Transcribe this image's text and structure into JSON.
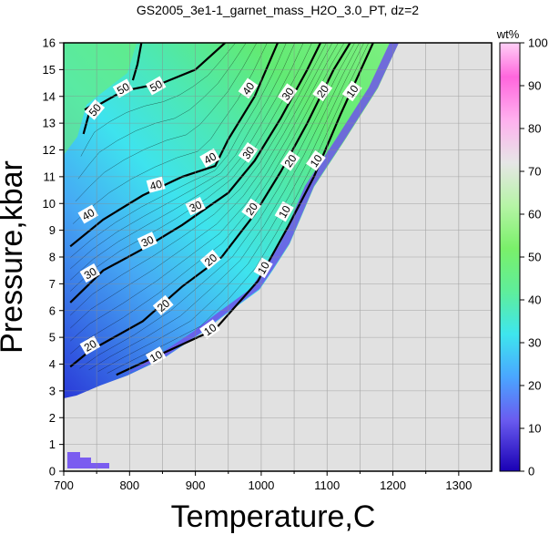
{
  "chart_data": {
    "type": "heatmap",
    "title": "GS2005_3e1-1_garnet_mass_H2O_3.0_PT, dz=2",
    "xlabel": "Temperature,C",
    "ylabel": "Pressure,kbar",
    "xlim": [
      700,
      1350
    ],
    "ylim": [
      0,
      16
    ],
    "xticks": [
      "700",
      "800",
      "900",
      "1000",
      "1100",
      "1200",
      "1300"
    ],
    "yticks": [
      "0",
      "1",
      "2",
      "3",
      "4",
      "5",
      "6",
      "7",
      "8",
      "9",
      "10",
      "11",
      "12",
      "13",
      "14",
      "15",
      "16"
    ],
    "grid": true,
    "colorbar": {
      "label": "wt%",
      "range": [
        0,
        100
      ],
      "ticks": [
        "0",
        "10",
        "20",
        "30",
        "40",
        "50",
        "60",
        "70",
        "80",
        "90",
        "100"
      ],
      "colors": [
        "#1a00b4",
        "#6a5cf0",
        "#4aa6ff",
        "#3ee6ee",
        "#5fee9a",
        "#7af06a",
        "#b6f4a6",
        "#e6e6e6",
        "#ffb0ee",
        "#ff66dd",
        "#ffd0f6"
      ]
    },
    "background_color": "#e1e1e1",
    "contour_step": 2,
    "labelled_contours": [
      {
        "level": 10,
        "points": [
          [
            780,
            3.6
          ],
          [
            850,
            4.4
          ],
          [
            930,
            5.3
          ],
          [
            995,
            7.1
          ],
          [
            1040,
            9.1
          ],
          [
            1080,
            11.0
          ],
          [
            1120,
            13.3
          ],
          [
            1170,
            16.0
          ]
        ]
      },
      {
        "level": 20,
        "points": [
          [
            710,
            3.9
          ],
          [
            740,
            4.5
          ],
          [
            820,
            5.6
          ],
          [
            880,
            6.9
          ],
          [
            940,
            8.0
          ],
          [
            990,
            9.6
          ],
          [
            1030,
            11.2
          ],
          [
            1070,
            13.0
          ],
          [
            1110,
            15.0
          ],
          [
            1135,
            16.0
          ]
        ]
      },
      {
        "level": 30,
        "points": [
          [
            710,
            6.3
          ],
          [
            760,
            7.5
          ],
          [
            820,
            8.3
          ],
          [
            880,
            9.2
          ],
          [
            950,
            10.4
          ],
          [
            990,
            11.6
          ],
          [
            1030,
            13.2
          ],
          [
            1070,
            15.0
          ],
          [
            1090,
            16.0
          ]
        ]
      },
      {
        "level": 40,
        "points": [
          [
            710,
            8.4
          ],
          [
            760,
            9.4
          ],
          [
            820,
            10.3
          ],
          [
            880,
            11.0
          ],
          [
            930,
            11.4
          ],
          [
            950,
            12.4
          ],
          [
            990,
            14.0
          ],
          [
            1025,
            16.0
          ]
        ]
      },
      {
        "level": 50,
        "points": [
          [
            730,
            12.6
          ],
          [
            740,
            13.5
          ],
          [
            790,
            14.2
          ],
          [
            850,
            14.5
          ],
          [
            900,
            15.0
          ],
          [
            945,
            16.0
          ]
        ]
      },
      {
        "level": 50,
        "points": [
          [
            805,
            14.6
          ],
          [
            812,
            15.2
          ],
          [
            818,
            16.0
          ]
        ]
      },
      {
        "level": 50,
        "points": [
          [
            732,
            13.5
          ],
          [
            745,
            13.7
          ]
        ]
      }
    ],
    "contour_labels": [
      {
        "text": "10",
        "x": 840,
        "y": 4.3,
        "angle": -30
      },
      {
        "text": "10",
        "x": 922,
        "y": 5.3,
        "angle": -35
      },
      {
        "text": "10",
        "x": 1003,
        "y": 7.6,
        "angle": -60
      },
      {
        "text": "10",
        "x": 1035,
        "y": 9.7,
        "angle": -60
      },
      {
        "text": "10",
        "x": 1083,
        "y": 11.6,
        "angle": -55
      },
      {
        "text": "10",
        "x": 1138,
        "y": 14.2,
        "angle": -55
      },
      {
        "text": "20",
        "x": 740,
        "y": 4.7,
        "angle": -30
      },
      {
        "text": "20",
        "x": 851,
        "y": 6.2,
        "angle": -40
      },
      {
        "text": "20",
        "x": 923,
        "y": 7.9,
        "angle": -40
      },
      {
        "text": "20",
        "x": 985,
        "y": 9.8,
        "angle": -55
      },
      {
        "text": "20",
        "x": 1044,
        "y": 11.6,
        "angle": -55
      },
      {
        "text": "20",
        "x": 1093,
        "y": 14.2,
        "angle": -55
      },
      {
        "text": "30",
        "x": 740,
        "y": 7.4,
        "angle": -30
      },
      {
        "text": "30",
        "x": 827,
        "y": 8.6,
        "angle": -25
      },
      {
        "text": "30",
        "x": 900,
        "y": 9.9,
        "angle": -25
      },
      {
        "text": "30",
        "x": 980,
        "y": 11.9,
        "angle": -55
      },
      {
        "text": "30",
        "x": 1040,
        "y": 14.1,
        "angle": -55
      },
      {
        "text": "40",
        "x": 737,
        "y": 9.6,
        "angle": -30
      },
      {
        "text": "40",
        "x": 840,
        "y": 10.7,
        "angle": -15
      },
      {
        "text": "40",
        "x": 922,
        "y": 11.7,
        "angle": -30
      },
      {
        "text": "40",
        "x": 980,
        "y": 14.3,
        "angle": -55
      },
      {
        "text": "50",
        "x": 747,
        "y": 13.5,
        "angle": -50
      },
      {
        "text": "50",
        "x": 790,
        "y": 14.3,
        "angle": -30
      },
      {
        "text": "50",
        "x": 840,
        "y": 14.4,
        "angle": -30
      }
    ]
  }
}
